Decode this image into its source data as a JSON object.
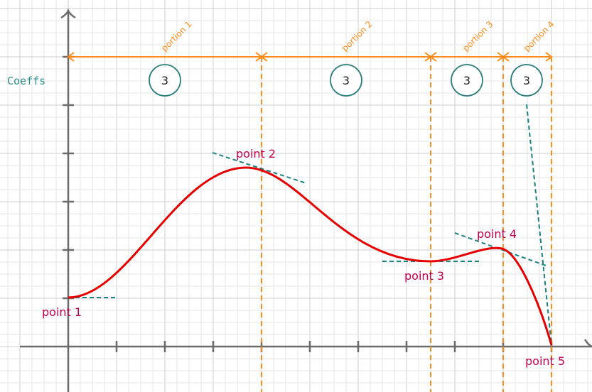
{
  "diagram": {
    "row_label": "Coeffs",
    "portions": [
      {
        "label": "portion 1",
        "coeffs": "3"
      },
      {
        "label": "portion 2",
        "coeffs": "3"
      },
      {
        "label": "portion 3",
        "coeffs": "3"
      },
      {
        "label": "portion 4",
        "coeffs": "3"
      }
    ],
    "points": [
      {
        "label": "point 1"
      },
      {
        "label": "point 2"
      },
      {
        "label": "point 3"
      },
      {
        "label": "point 4"
      },
      {
        "label": "point 5"
      }
    ]
  },
  "colors": {
    "grid": "#d9d9d9",
    "axis": "#6b6b6b",
    "curve": "#e60000",
    "tangent": "#1a8080",
    "portion_arrow": "#ff8c1a",
    "divider": "#ff8c1a",
    "coeff_circle": "#2e7d7d",
    "coeff_label": "#2e8b8b",
    "point_label": "#c2004d"
  }
}
